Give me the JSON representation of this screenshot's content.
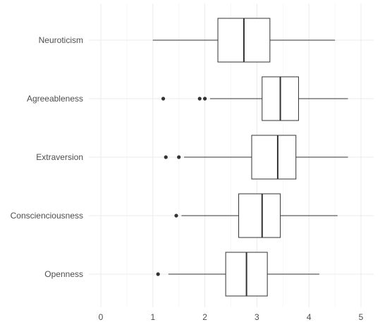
{
  "chart_data": {
    "type": "boxplot",
    "orientation": "horizontal",
    "title": "",
    "xlabel": "",
    "ylabel": "",
    "xlim": [
      0,
      5
    ],
    "x_ticks": [
      0,
      1,
      2,
      3,
      4,
      5
    ],
    "grid": true,
    "legend": "none",
    "colors": {
      "box_fill": "#ffffff",
      "stroke": "#333333",
      "grid_major": "#ebebeb",
      "grid_minor": "#f5f5f5"
    },
    "categories": [
      "Neuroticism",
      "Agreeableness",
      "Extraversion",
      "Conscienciousness",
      "Openness"
    ],
    "boxes": [
      {
        "category": "Neuroticism",
        "whisker_low": 1.0,
        "q1": 2.25,
        "median": 2.75,
        "q3": 3.25,
        "whisker_high": 4.5,
        "outliers": []
      },
      {
        "category": "Agreeableness",
        "whisker_low": 2.1,
        "q1": 3.1,
        "median": 3.45,
        "q3": 3.8,
        "whisker_high": 4.75,
        "outliers": [
          1.2,
          1.9,
          2.0
        ]
      },
      {
        "category": "Extraversion",
        "whisker_low": 1.6,
        "q1": 2.9,
        "median": 3.4,
        "q3": 3.75,
        "whisker_high": 4.75,
        "outliers": [
          1.25,
          1.5
        ]
      },
      {
        "category": "Conscienciousness",
        "whisker_low": 1.55,
        "q1": 2.65,
        "median": 3.1,
        "q3": 3.45,
        "whisker_high": 4.55,
        "outliers": [
          1.45
        ]
      },
      {
        "category": "Openness",
        "whisker_low": 1.3,
        "q1": 2.4,
        "median": 2.8,
        "q3": 3.2,
        "whisker_high": 4.2,
        "outliers": [
          1.1
        ]
      }
    ]
  }
}
